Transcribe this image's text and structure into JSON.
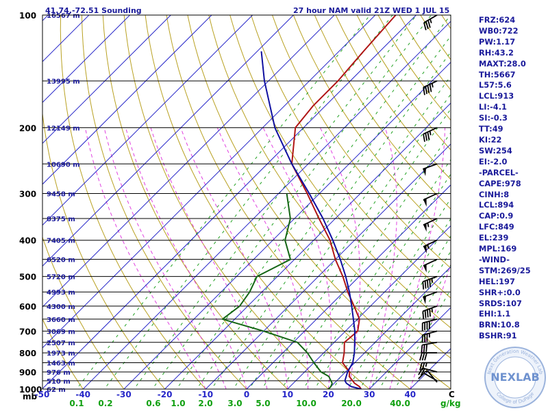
{
  "header": {
    "location": "41.74,-72.51 Sounding",
    "model": "27 hour NAM valid 21Z WED  1 JUL 15"
  },
  "indices": [
    "FRZ:624",
    "WB0:722",
    "PW:1.17",
    "RH:43.2",
    "MAXT:28.0",
    "TH:5667",
    "L57:5.6",
    "LCL:913",
    "LI:-4.1",
    "SI:-0.3",
    "TT:49",
    "KI:22",
    "SW:254",
    "EI:-2.0",
    "-PARCEL-",
    "CAPE:978",
    "CINH:8",
    "LCL:894",
    "CAP:0.9",
    "LFC:849",
    "EL:239",
    "MPL:169",
    "-WIND-",
    "STM:269/25",
    "HEL:197",
    "SHR+:0.0",
    "SRDS:107",
    "EHI:1.1",
    "BRN:10.8",
    "BSHR:91"
  ],
  "logo": {
    "text": "NEXLAB",
    "ring_top": "Next Generation Weather Lab",
    "ring_bottom": "College of DuPage"
  },
  "colors": {
    "temperature": "#b01515",
    "dewpoint": "#156615",
    "parcel": "#1010a0",
    "isobar": "#000000",
    "isotherm": "#2525c8",
    "dry_adiabat": "#b8a020",
    "moist_adiabat": "#e040e0",
    "mixing_ratio": "#20a020",
    "heights": "#1a1a9a",
    "text": "#1a1a9a"
  },
  "chart_data": {
    "type": "line",
    "title": "",
    "xlabel": "",
    "ylabel": "mb",
    "pressure_ticks": [
      100,
      200,
      300,
      400,
      500,
      600,
      700,
      800,
      900,
      1000
    ],
    "temp_ticks": [
      -50,
      -40,
      -30,
      -20,
      -10,
      0,
      10,
      20,
      30,
      40
    ],
    "mixing_ratio_labels": [
      "0.1",
      "0.2",
      "0.6",
      "1.0",
      "2.0",
      "3.0",
      "5.0",
      "10.0",
      "20.0",
      "40.0"
    ],
    "mixing_ratio_unit": "g/kg",
    "temp_unit": "C",
    "heights": [
      {
        "p": 100,
        "label": "16567 m"
      },
      {
        "p": 150,
        "label": "13995 m"
      },
      {
        "p": 200,
        "label": "12149 m"
      },
      {
        "p": 250,
        "label": "10690 m"
      },
      {
        "p": 300,
        "label": "9458 m"
      },
      {
        "p": 350,
        "label": "8375 m"
      },
      {
        "p": 400,
        "label": "7405 m"
      },
      {
        "p": 450,
        "label": "6520 m"
      },
      {
        "p": 500,
        "label": "5720 m"
      },
      {
        "p": 550,
        "label": "4993 m"
      },
      {
        "p": 600,
        "label": "4300 m"
      },
      {
        "p": 650,
        "label": "3660 m"
      },
      {
        "p": 700,
        "label": "3069 m"
      },
      {
        "p": 750,
        "label": "2507 m"
      },
      {
        "p": 800,
        "label": "1973 m"
      },
      {
        "p": 850,
        "label": "1463 m"
      },
      {
        "p": 900,
        "label": "976 m"
      },
      {
        "p": 950,
        "label": "510 m"
      },
      {
        "p": 1000,
        "label": "62 m"
      }
    ],
    "series": [
      {
        "name": "temperature",
        "points": [
          [
            1000,
            28
          ],
          [
            985,
            27
          ],
          [
            965,
            25
          ],
          [
            925,
            22
          ],
          [
            900,
            21
          ],
          [
            850,
            17
          ],
          [
            800,
            15
          ],
          [
            750,
            12.5
          ],
          [
            700,
            13
          ],
          [
            650,
            10.5
          ],
          [
            600,
            6
          ],
          [
            550,
            1
          ],
          [
            500,
            -4
          ],
          [
            450,
            -10
          ],
          [
            400,
            -16
          ],
          [
            350,
            -24
          ],
          [
            300,
            -33
          ],
          [
            250,
            -44
          ],
          [
            200,
            -52
          ],
          [
            175,
            -53
          ],
          [
            150,
            -53
          ],
          [
            125,
            -54
          ],
          [
            100,
            -55
          ]
        ]
      },
      {
        "name": "dewpoint",
        "points": [
          [
            1000,
            20
          ],
          [
            985,
            20
          ],
          [
            965,
            19.5
          ],
          [
            925,
            17
          ],
          [
            900,
            14
          ],
          [
            850,
            10
          ],
          [
            800,
            6
          ],
          [
            750,
            1
          ],
          [
            700,
            -10
          ],
          [
            650,
            -23
          ],
          [
            600,
            -22
          ],
          [
            550,
            -23
          ],
          [
            500,
            -25
          ],
          [
            450,
            -21
          ],
          [
            400,
            -27
          ],
          [
            350,
            -31
          ],
          [
            300,
            -38
          ]
        ]
      },
      {
        "name": "parcel",
        "points": [
          [
            1000,
            28
          ],
          [
            985,
            25
          ],
          [
            965,
            23
          ],
          [
            950,
            22
          ],
          [
            900,
            20.5
          ],
          [
            850,
            19.5
          ],
          [
            800,
            17.5
          ],
          [
            750,
            15
          ],
          [
            700,
            12.3
          ],
          [
            650,
            9
          ],
          [
            600,
            5.4
          ],
          [
            550,
            1.4
          ],
          [
            500,
            -3.3
          ],
          [
            450,
            -8.8
          ],
          [
            400,
            -15.3
          ],
          [
            350,
            -23
          ],
          [
            300,
            -32.5
          ],
          [
            250,
            -44
          ],
          [
            200,
            -57
          ],
          [
            150,
            -71
          ],
          [
            125,
            -79
          ]
        ]
      }
    ],
    "winds": [
      {
        "p": 1000,
        "dir": 320,
        "kt": 5
      },
      {
        "p": 950,
        "dir": 300,
        "kt": 10
      },
      {
        "p": 900,
        "dir": 285,
        "kt": 20
      },
      {
        "p": 850,
        "dir": 270,
        "kt": 25
      },
      {
        "p": 800,
        "dir": 270,
        "kt": 30
      },
      {
        "p": 750,
        "dir": 260,
        "kt": 30
      },
      {
        "p": 700,
        "dir": 255,
        "kt": 35
      },
      {
        "p": 650,
        "dir": 255,
        "kt": 40
      },
      {
        "p": 600,
        "dir": 250,
        "kt": 45
      },
      {
        "p": 550,
        "dir": 250,
        "kt": 50
      },
      {
        "p": 500,
        "dir": 250,
        "kt": 45
      },
      {
        "p": 450,
        "dir": 245,
        "kt": 50
      },
      {
        "p": 400,
        "dir": 245,
        "kt": 55
      },
      {
        "p": 350,
        "dir": 245,
        "kt": 55
      },
      {
        "p": 300,
        "dir": 245,
        "kt": 50
      },
      {
        "p": 250,
        "dir": 250,
        "kt": 50
      },
      {
        "p": 200,
        "dir": 245,
        "kt": 35
      },
      {
        "p": 150,
        "dir": 245,
        "kt": 45
      },
      {
        "p": 100,
        "dir": 240,
        "kt": 35
      }
    ]
  }
}
